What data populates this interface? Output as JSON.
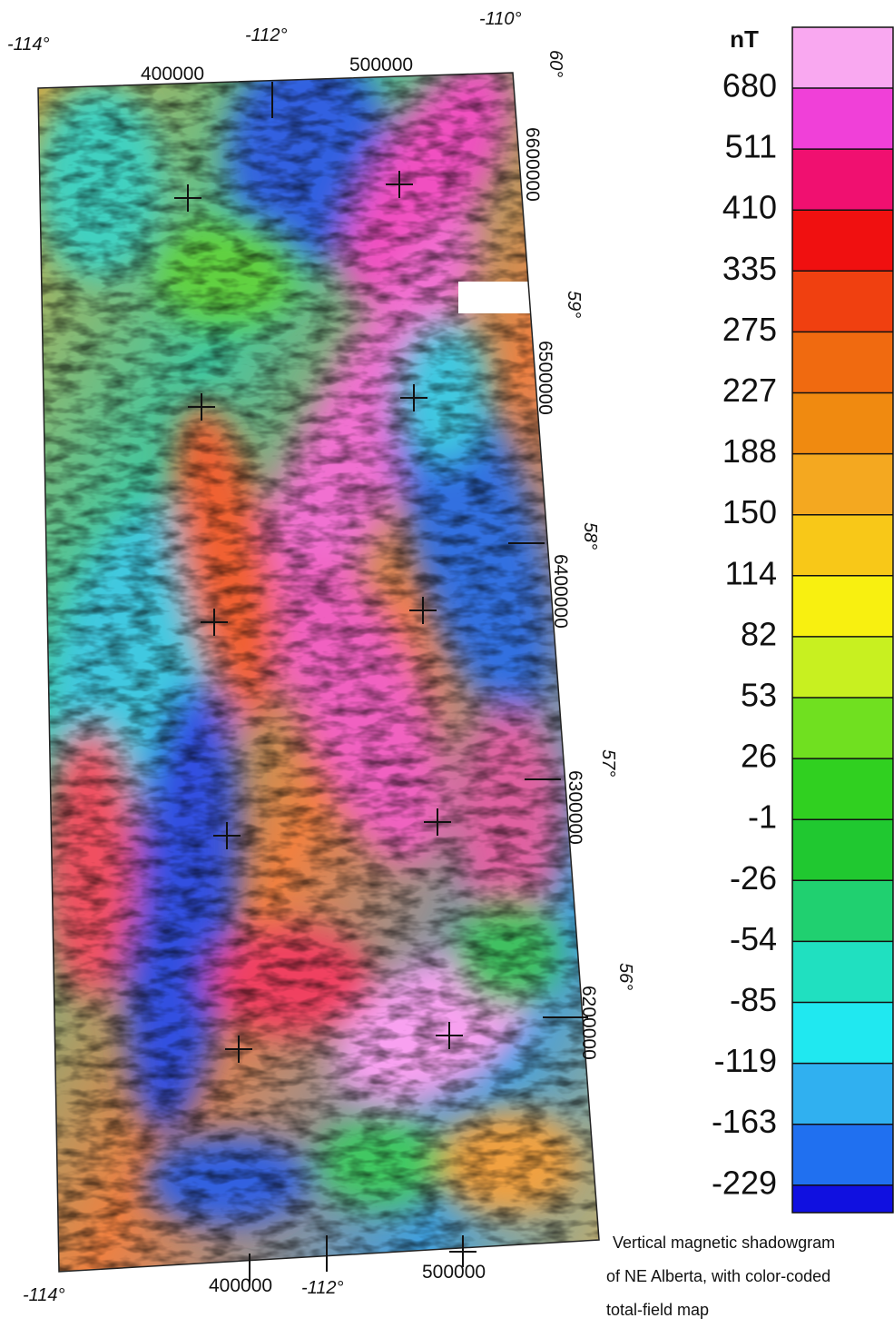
{
  "map": {
    "coords": {
      "top": [
        "-114°",
        "-112°",
        "-110°",
        "400000",
        "500000"
      ],
      "right_lat": [
        "60°",
        "59°",
        "58°",
        "57°",
        "56°"
      ],
      "right_northing": [
        "6600000",
        "6500000",
        "6400000",
        "6300000",
        "6200000"
      ],
      "bottom": [
        "-114°",
        "400000",
        "-112°",
        "500000"
      ]
    },
    "caption": [
      "Vertical magnetic shadowgram",
      "of NE Alberta, with color-coded",
      "total-field map"
    ]
  },
  "colorbar": {
    "unit": "nT",
    "labels": [
      "680",
      "511",
      "410",
      "335",
      "275",
      "227",
      "188",
      "150",
      "114",
      "82",
      "53",
      "26",
      "-1",
      "-26",
      "-54",
      "-85",
      "-119",
      "-163",
      "-229"
    ],
    "colors": [
      "#f9a8f0",
      "#f040d8",
      "#f01070",
      "#f01010",
      "#f04010",
      "#f06a10",
      "#f08a10",
      "#f4a820",
      "#f8c818",
      "#f8f010",
      "#c8f020",
      "#70e020",
      "#30d020",
      "#20c830",
      "#20d070",
      "#20e0c0",
      "#20e8f0",
      "#30b0f0",
      "#2070f0",
      "#1010e0"
    ]
  }
}
